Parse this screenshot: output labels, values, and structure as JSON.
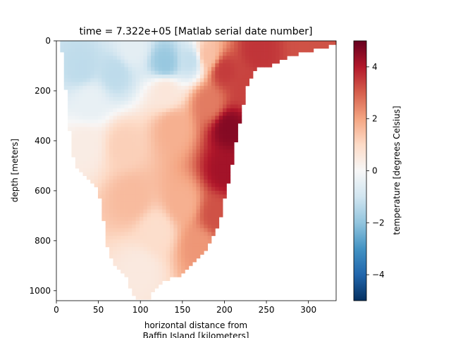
{
  "chart_data": {
    "type": "heatmap",
    "title": "time = 7.322e+05 [Matlab serial date number]",
    "xlabel_lines": [
      "horizontal distance from",
      "Baffin Island [kilometers]"
    ],
    "ylabel": "depth [meters]",
    "xlim": [
      0,
      333
    ],
    "ylim": [
      1040,
      0
    ],
    "x_ticks": [
      0,
      50,
      100,
      150,
      200,
      250,
      300
    ],
    "y_ticks": [
      0,
      200,
      400,
      600,
      800,
      1000
    ],
    "grid": false,
    "colorbar": {
      "label": "temperature [degrees Celsius]",
      "range": [
        -5,
        5
      ],
      "ticks": [
        4,
        2,
        0,
        -2,
        -4
      ],
      "tick_labels": [
        "4",
        "2",
        "0",
        "−2",
        "−4"
      ],
      "colormap": "RdBu_r",
      "colors": [
        "#053061",
        "#2166ac",
        "#4393c3",
        "#92c5de",
        "#d1e5f0",
        "#f7f7f7",
        "#fddbc7",
        "#f4a582",
        "#d6604d",
        "#b2182b",
        "#67001f"
      ]
    },
    "bottom_profile": [
      [
        0,
        0
      ],
      [
        5,
        10
      ],
      [
        8,
        60
      ],
      [
        10,
        120
      ],
      [
        12,
        250
      ],
      [
        14,
        345
      ],
      [
        16,
        370
      ],
      [
        18,
        420
      ],
      [
        21,
        480
      ],
      [
        25,
        510
      ],
      [
        35,
        540
      ],
      [
        45,
        570
      ],
      [
        50,
        600
      ],
      [
        52,
        640
      ],
      [
        54,
        680
      ],
      [
        56,
        720
      ],
      [
        58,
        770
      ],
      [
        60,
        800
      ],
      [
        62,
        850
      ],
      [
        66,
        880
      ],
      [
        72,
        900
      ],
      [
        78,
        920
      ],
      [
        83,
        940
      ],
      [
        86,
        970
      ],
      [
        90,
        1000
      ],
      [
        95,
        1030
      ],
      [
        110,
        1030
      ],
      [
        120,
        990
      ],
      [
        130,
        960
      ],
      [
        148,
        940
      ],
      [
        158,
        910
      ],
      [
        170,
        870
      ],
      [
        180,
        830
      ],
      [
        185,
        800
      ],
      [
        195,
        720
      ],
      [
        200,
        640
      ],
      [
        205,
        560
      ],
      [
        210,
        480
      ],
      [
        218,
        330
      ],
      [
        224,
        230
      ],
      [
        230,
        150
      ],
      [
        240,
        110
      ],
      [
        255,
        100
      ],
      [
        265,
        80
      ],
      [
        280,
        60
      ],
      [
        300,
        40
      ],
      [
        320,
        30
      ],
      [
        332,
        10
      ],
      [
        333,
        0
      ]
    ],
    "value_anchors": [
      {
        "x": 30,
        "y": 110,
        "v": -1.3
      },
      {
        "x": 70,
        "y": 130,
        "v": -1.3
      },
      {
        "x": 130,
        "y": 90,
        "v": -1.9
      },
      {
        "x": 160,
        "y": 80,
        "v": -1.2
      },
      {
        "x": 90,
        "y": 30,
        "v": -0.5
      },
      {
        "x": 40,
        "y": 240,
        "v": -0.4
      },
      {
        "x": 130,
        "y": 200,
        "v": 0.6
      },
      {
        "x": 35,
        "y": 420,
        "v": 0.4
      },
      {
        "x": 80,
        "y": 420,
        "v": 1.2
      },
      {
        "x": 140,
        "y": 350,
        "v": 1.8
      },
      {
        "x": 90,
        "y": 630,
        "v": 1.6
      },
      {
        "x": 150,
        "y": 650,
        "v": 1.8
      },
      {
        "x": 120,
        "y": 760,
        "v": 0.9
      },
      {
        "x": 100,
        "y": 920,
        "v": 0.5
      },
      {
        "x": 170,
        "y": 820,
        "v": 2.2
      },
      {
        "x": 182,
        "y": 250,
        "v": 2.6
      },
      {
        "x": 180,
        "y": 60,
        "v": 1.5
      },
      {
        "x": 200,
        "y": 120,
        "v": 3.5
      },
      {
        "x": 205,
        "y": 350,
        "v": 4.6
      },
      {
        "x": 200,
        "y": 520,
        "v": 4.2
      },
      {
        "x": 190,
        "y": 700,
        "v": 3.2
      },
      {
        "x": 240,
        "y": 40,
        "v": 3.6
      },
      {
        "x": 300,
        "y": 20,
        "v": 3.2
      },
      {
        "x": 225,
        "y": 180,
        "v": 3.4
      }
    ]
  }
}
